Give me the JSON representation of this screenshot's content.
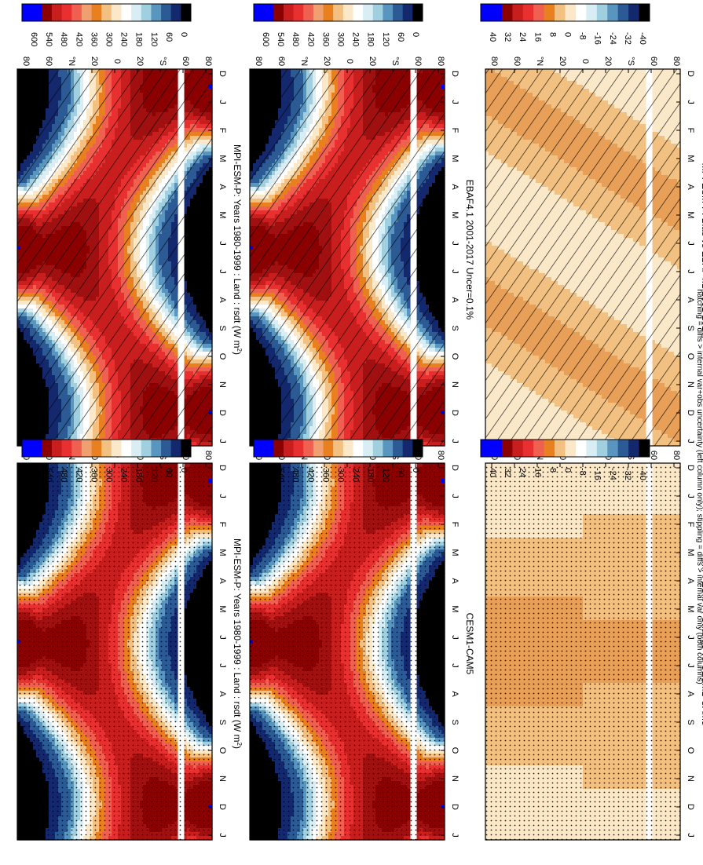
{
  "figure": {
    "footnote": "hatching = diffs > internal var+obs uncertainty (left column only); stippling = diffs > internal var only (both columns)"
  },
  "chart_data": [
    {
      "type": "heatmap",
      "panel": "left-top",
      "title": "MPI-ESM-P: Years 1980-1999 : Land : rsdt (W m",
      "title_sup": "2",
      "title_close": ")",
      "x_ticks": [
        "D",
        "J",
        "F",
        "M",
        "A",
        "M",
        "J",
        "J",
        "A",
        "S",
        "O",
        "N",
        "D",
        "J"
      ],
      "y_ticks": [
        "80",
        "60",
        "°N",
        "20",
        "0",
        "20",
        "°S",
        "60",
        "80"
      ],
      "colorbar": [
        "600",
        "540",
        "480",
        "420",
        "360",
        "300",
        "240",
        "180",
        "120",
        "60",
        "0"
      ],
      "pattern": "hatch",
      "values_at_equator_by_month": [
        390,
        410,
        425,
        420,
        400,
        380,
        385,
        410,
        425,
        410,
        390,
        385
      ]
    },
    {
      "type": "heatmap",
      "panel": "right-top",
      "title": "MPI-ESM-P: Years 1980-1999 : Land : rsdt (W m",
      "title_sup": "2",
      "title_close": ")",
      "x_ticks": [
        "D",
        "J",
        "F",
        "M",
        "A",
        "M",
        "J",
        "J",
        "A",
        "S",
        "O",
        "N",
        "D",
        "J"
      ],
      "y_ticks": [
        "80",
        "60",
        "°N",
        "20",
        "0",
        "20",
        "°S",
        "60",
        "80"
      ],
      "colorbar": [
        "600",
        "540",
        "480",
        "420",
        "360",
        "300",
        "240",
        "180",
        "120",
        "60",
        "0"
      ],
      "pattern": "stipple"
    },
    {
      "type": "heatmap",
      "panel": "left-middle",
      "title": "EBAF4.1 2001-2017 Uncer=0.1%",
      "x_ticks": [
        "D",
        "J",
        "F",
        "M",
        "A",
        "M",
        "J",
        "J",
        "A",
        "S",
        "O",
        "N",
        "D",
        "J"
      ],
      "y_ticks": [
        "80",
        "60",
        "°N",
        "20",
        "0",
        "20",
        "°S",
        "60",
        "80"
      ],
      "colorbar": [
        "600",
        "540",
        "480",
        "420",
        "360",
        "300",
        "240",
        "180",
        "120",
        "60",
        "0"
      ],
      "pattern": "hatch"
    },
    {
      "type": "heatmap",
      "panel": "right-middle",
      "title": "CESM1-CAM5",
      "x_ticks": [
        "D",
        "J",
        "F",
        "M",
        "A",
        "M",
        "J",
        "J",
        "A",
        "S",
        "O",
        "N",
        "D",
        "J"
      ],
      "y_ticks": [
        "80",
        "60",
        "°N",
        "20",
        "0",
        "20",
        "°S",
        "60",
        "80"
      ],
      "colorbar": [
        "600",
        "540",
        "480",
        "420",
        "360",
        "300",
        "240",
        "180",
        "120",
        "60",
        "0"
      ],
      "pattern": "stipple"
    },
    {
      "type": "heatmap",
      "panel": "left-bottom",
      "title": "MPI-ESM-P: Bias vs EBAF4.1 2001-2017",
      "x_ticks": [
        "D",
        "J",
        "F",
        "M",
        "A",
        "M",
        "J",
        "J",
        "A",
        "S",
        "O",
        "N",
        "D",
        "J"
      ],
      "y_ticks": [
        "80",
        "60",
        "°N",
        "20",
        "0",
        "20",
        "°S",
        "60",
        "80"
      ],
      "colorbar": [
        "40",
        "32",
        "24",
        "16",
        "8",
        "0",
        "-8",
        "-16",
        "-24",
        "-32",
        "-40"
      ],
      "pattern": "hatch"
    },
    {
      "type": "heatmap",
      "panel": "right-bottom",
      "title": "MPI-ESM-P: Change vs CESM1-CAM5",
      "x_ticks": [
        "D",
        "J",
        "F",
        "M",
        "A",
        "M",
        "J",
        "J",
        "A",
        "S",
        "O",
        "N",
        "D",
        "J"
      ],
      "y_ticks": [
        "80",
        "60",
        "°N",
        "20",
        "0",
        "20",
        "°S",
        "60",
        "80"
      ],
      "colorbar": [
        "40",
        "32",
        "24",
        "16",
        "8",
        "0",
        "-8",
        "-16",
        "-24",
        "-32",
        "-40"
      ],
      "pattern": "stipple"
    }
  ],
  "colors": {
    "rsdt_scale": [
      "#0000ff",
      "#0000ff",
      "#8b0000",
      "#c81e1e",
      "#e83030",
      "#f06050",
      "#f0a070",
      "#e88020",
      "#f2c080",
      "#fbe8c8",
      "#ffffff",
      "#d8eef4",
      "#a0cfe0",
      "#5896c0",
      "#2b5a94",
      "#14286e",
      "#000000"
    ],
    "diff_scale": [
      "#0000ff",
      "#0000ff",
      "#8b0000",
      "#c81e1e",
      "#e83030",
      "#f06050",
      "#e88020",
      "#f2c080",
      "#fbe8c8",
      "#ffffff",
      "#d8eef4",
      "#a0cfe0",
      "#5896c0",
      "#2b5a94",
      "#14286e",
      "#000000"
    ]
  }
}
